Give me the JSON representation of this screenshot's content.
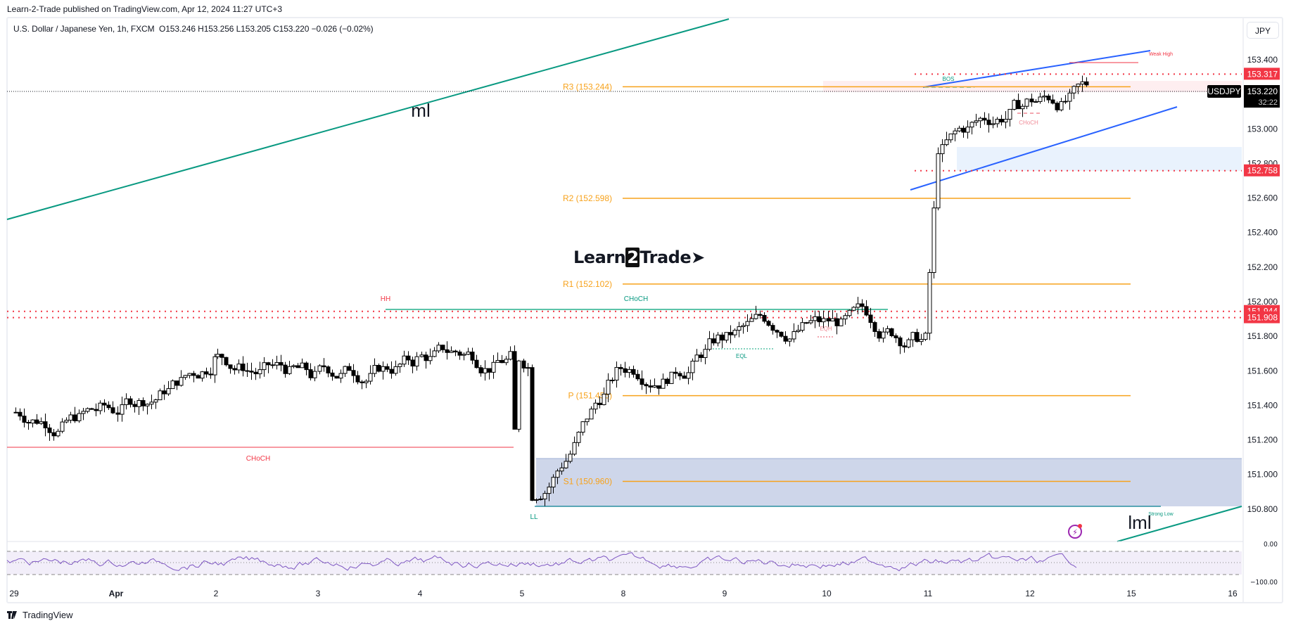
{
  "header": {
    "published": "Learn-2-Trade published on TradingView.com, Apr 12, 2024 11:27 UTC+3",
    "symbol_desc": "U.S. Dollar / Japanese Yen, 1h, FXCM",
    "ohlc": "O153.246  H153.256  L153.205  C153.220  −0.026 (−0.02%)",
    "currency_button": "JPY"
  },
  "footer": {
    "brand": "TradingView"
  },
  "watermark": {
    "pre": "Learn",
    "two": "2",
    "post": "Trade"
  },
  "price_axis": {
    "ticks": [
      "153.400",
      "153.000",
      "152.800",
      "152.600",
      "152.400",
      "152.200",
      "152.000",
      "151.800",
      "151.600",
      "151.400",
      "151.200",
      "151.000",
      "150.800"
    ],
    "labels": [
      {
        "text": "153.317",
        "color": "#f23645",
        "price": 153.317
      },
      {
        "text": "152.758",
        "color": "#f23645",
        "price": 152.758
      },
      {
        "text": "151.944",
        "color": "#f23645",
        "price": 151.944
      },
      {
        "text": "151.908",
        "color": "#f23645",
        "price": 151.908
      }
    ],
    "current": {
      "symbol": "USDJPY",
      "price": "153.220",
      "countdown": "32:22"
    }
  },
  "rsi_axis": {
    "top": "0.00",
    "bottom": "−100.00"
  },
  "time_axis": [
    "29",
    "Apr",
    "2",
    "3",
    "4",
    "5",
    "8",
    "9",
    "10",
    "11",
    "12",
    "15",
    "16"
  ],
  "annotations": {
    "ml": "ml",
    "lml": "lml",
    "hh": "HH",
    "ll": "LL",
    "choch_left": "CHoCH",
    "choch_mid": "CHoCH",
    "choch_right": "CHoCH",
    "bos": "BOS",
    "eqh": "EQH",
    "eql": "EQL",
    "weak_high": "Weak High",
    "strong_low": "Strong Low"
  },
  "pivots": [
    {
      "label": "R3 (153.244)",
      "price": 153.244
    },
    {
      "label": "R2 (152.598)",
      "price": 152.598
    },
    {
      "label": "R1 (152.102)",
      "price": 152.102
    },
    {
      "label": "P (151.456)",
      "price": 151.456
    },
    {
      "label": "S1 (150.960)",
      "price": 150.96
    }
  ],
  "colors": {
    "up": "#ffffff",
    "down": "#000000",
    "pivot": "#f7a21b",
    "red": "#f23645",
    "teal": "#089981",
    "blue": "#2962ff",
    "rsi": "#7e57c2",
    "zone": "#c5cfe6"
  },
  "chart_data": {
    "type": "candlestick",
    "title": "U.S. Dollar / Japanese Yen, 1h, FXCM",
    "xlabel": "",
    "ylabel": "JPY",
    "categories": [
      "29",
      "Apr",
      "2",
      "3",
      "4",
      "5",
      "8",
      "9",
      "10",
      "11",
      "12",
      "15",
      "16"
    ],
    "ylim": [
      150.7,
      153.5
    ],
    "last": {
      "open": 153.246,
      "high": 153.256,
      "low": 153.205,
      "close": 153.22,
      "change": -0.026,
      "change_pct": -0.02
    },
    "daily_path": [
      {
        "day": "Mar 29",
        "close": 151.38
      },
      {
        "day": "Apr 1",
        "close": 151.66
      },
      {
        "day": "Apr 2",
        "close": 151.56
      },
      {
        "day": "Apr 3",
        "close": 151.66
      },
      {
        "day": "Apr 4",
        "close": 151.68
      },
      {
        "day": "Apr 5",
        "close": 151.62
      },
      {
        "day": "Apr 8",
        "close": 151.8
      },
      {
        "day": "Apr 9",
        "close": 151.88
      },
      {
        "day": "Apr 10",
        "close": 151.78
      },
      {
        "day": "Apr 11",
        "close": 153.15
      },
      {
        "day": "Apr 12",
        "close": 153.22
      }
    ],
    "levels": {
      "R3": 153.244,
      "R2": 152.598,
      "R1": 152.102,
      "P": 151.456,
      "S1": 150.96,
      "weak_high": 153.38,
      "strong_low": 150.8,
      "resistance": [
        153.317,
        151.944,
        151.908
      ],
      "support": 152.758
    },
    "rsi_range": [
      -100,
      0
    ],
    "grid": false,
    "legend_position": "top-left"
  }
}
